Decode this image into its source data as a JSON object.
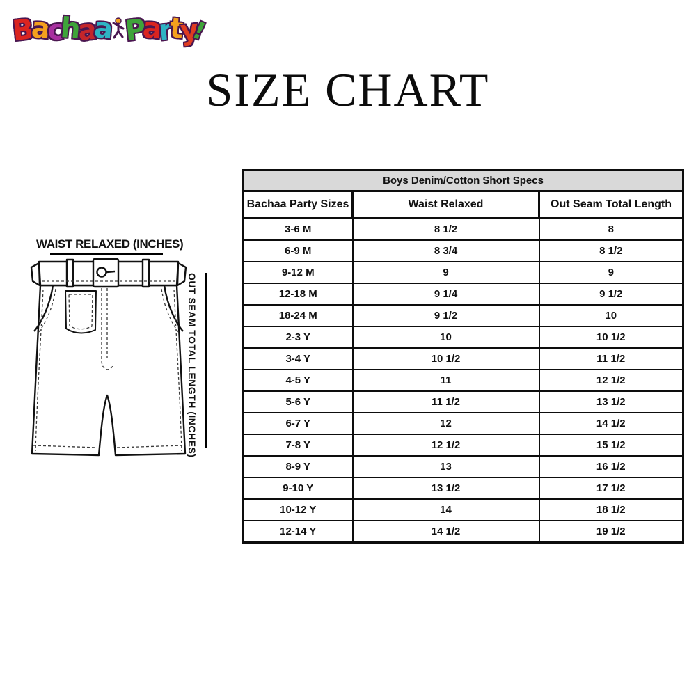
{
  "title": "SIZE CHART",
  "logo": {
    "alt": "Bachaa Party",
    "outline_color": "#4a1650",
    "bachaa": [
      {
        "ch": "B",
        "color": "#da2420"
      },
      {
        "ch": "a",
        "color": "#f5a01e"
      },
      {
        "ch": "c",
        "color": "#a8309f"
      },
      {
        "ch": "h",
        "color": "#3fa33a"
      },
      {
        "ch": "a",
        "color": "#c4262b"
      },
      {
        "ch": "a",
        "color": "#2eb3c4"
      }
    ],
    "party": [
      {
        "ch": "P",
        "color": "#3fa33a"
      },
      {
        "ch": "a",
        "color": "#da2420"
      },
      {
        "ch": "r",
        "color": "#2eb3c4"
      },
      {
        "ch": "t",
        "color": "#f5a01e"
      },
      {
        "ch": "y",
        "color": "#e03c20"
      }
    ],
    "bang": {
      "ch": "!",
      "color": "#3fa33a"
    },
    "kid_color": "#f5a01e"
  },
  "diagram": {
    "waist_label": "WAIST RELAXED (INCHES)",
    "outseam_label": "OUT SEAM TOTAL LENGTH (INCHES)"
  },
  "chart_data": {
    "type": "table",
    "title": "Boys Denim/Cotton Short Specs",
    "title_bg": "#d9d9d9",
    "columns": [
      "Bachaa Party Sizes",
      "Waist Relaxed",
      "Out Seam Total Length"
    ],
    "rows": [
      [
        "3-6 M",
        "8 1/2",
        "8"
      ],
      [
        "6-9 M",
        "8 3/4",
        "8 1/2"
      ],
      [
        "9-12 M",
        "9",
        "9"
      ],
      [
        "12-18 M",
        "9 1/4",
        "9 1/2"
      ],
      [
        "18-24 M",
        "9 1/2",
        "10"
      ],
      [
        "2-3 Y",
        "10",
        "10 1/2"
      ],
      [
        "3-4 Y",
        "10 1/2",
        "11 1/2"
      ],
      [
        "4-5 Y",
        "11",
        "12 1/2"
      ],
      [
        "5-6 Y",
        "11 1/2",
        "13 1/2"
      ],
      [
        "6-7 Y",
        "12",
        "14 1/2"
      ],
      [
        "7-8 Y",
        "12 1/2",
        "15 1/2"
      ],
      [
        "8-9 Y",
        "13",
        "16 1/2"
      ],
      [
        "9-10 Y",
        "13 1/2",
        "17 1/2"
      ],
      [
        "10-12 Y",
        "14",
        "18 1/2"
      ],
      [
        "12-14 Y",
        "14 1/2",
        "19 1/2"
      ]
    ]
  }
}
